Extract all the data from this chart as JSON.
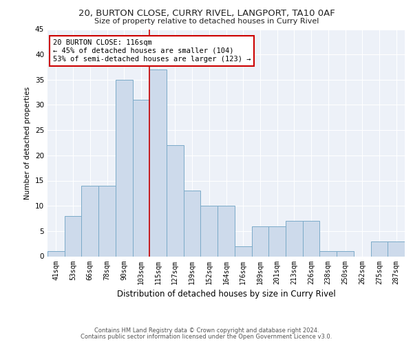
{
  "title": "20, BURTON CLOSE, CURRY RIVEL, LANGPORT, TA10 0AF",
  "subtitle": "Size of property relative to detached houses in Curry Rivel",
  "xlabel": "Distribution of detached houses by size in Curry Rivel",
  "ylabel": "Number of detached properties",
  "categories": [
    "41sqm",
    "53sqm",
    "66sqm",
    "78sqm",
    "90sqm",
    "103sqm",
    "115sqm",
    "127sqm",
    "139sqm",
    "152sqm",
    "164sqm",
    "176sqm",
    "189sqm",
    "201sqm",
    "213sqm",
    "226sqm",
    "238sqm",
    "250sqm",
    "262sqm",
    "275sqm",
    "287sqm"
  ],
  "values": [
    1,
    8,
    14,
    14,
    35,
    31,
    37,
    22,
    13,
    10,
    10,
    2,
    6,
    6,
    7,
    7,
    1,
    1,
    0,
    3,
    3
  ],
  "bar_color": "#cddaeb",
  "bar_edge_color": "#7aaac8",
  "property_line_color": "#cc0000",
  "annotation_text": "20 BURTON CLOSE: 116sqm\n← 45% of detached houses are smaller (104)\n53% of semi-detached houses are larger (123) →",
  "annotation_box_color": "#cc0000",
  "ylim": [
    0,
    45
  ],
  "yticks": [
    0,
    5,
    10,
    15,
    20,
    25,
    30,
    35,
    40,
    45
  ],
  "bg_color": "#edf1f8",
  "grid_color": "#ffffff",
  "footer_line1": "Contains HM Land Registry data © Crown copyright and database right 2024.",
  "footer_line2": "Contains public sector information licensed under the Open Government Licence v3.0."
}
